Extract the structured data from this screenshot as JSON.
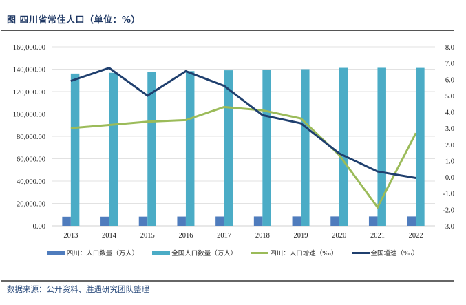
{
  "header": {
    "title": "图 四川省常住人口（单位：%）"
  },
  "footer": {
    "source": "数据来源：公开资料、胜遇研究团队整理"
  },
  "colors": {
    "sichuan_pop": "#4f7cbd",
    "national_pop": "#4bacc6",
    "sichuan_growth": "#9bbb59",
    "national_growth": "#1f3f6e",
    "grid": "#e2e2e2"
  },
  "chart_data": {
    "type": "bar",
    "title": "四川省常住人口（单位：%）",
    "categories": [
      "2013",
      "2014",
      "2015",
      "2016",
      "2017",
      "2018",
      "2019",
      "2020",
      "2021",
      "2022"
    ],
    "series": [
      {
        "name": "四川：人口数量（万人）",
        "type": "bar",
        "axis": "left",
        "values": [
          8107,
          8140,
          8204,
          8262,
          8302,
          8341,
          8375,
          8371,
          8372,
          8374
        ]
      },
      {
        "name": "全国人口数量（万人）",
        "type": "bar",
        "axis": "left",
        "values": [
          136072,
          136782,
          137462,
          138271,
          139008,
          139538,
          140005,
          141212,
          141260,
          141175
        ]
      },
      {
        "name": "四川：人口增速（‰）",
        "type": "line",
        "axis": "right",
        "values": [
          3.0,
          3.2,
          3.4,
          3.5,
          4.3,
          4.1,
          3.6,
          1.35,
          -1.86,
          2.7
        ]
      },
      {
        "name": "全国增速（‰）",
        "type": "line",
        "axis": "right",
        "values": [
          5.9,
          6.7,
          5.0,
          6.5,
          5.6,
          3.8,
          3.3,
          1.45,
          0.34,
          -0.06
        ]
      }
    ],
    "left_axis": {
      "ylim": [
        0,
        160000
      ],
      "ticks": [
        "0.00",
        "20,000.00",
        "40,000.00",
        "60,000.00",
        "80,000.00",
        "100,000.00",
        "120,000.00",
        "140,000.00",
        "160,000.00"
      ]
    },
    "right_axis": {
      "ylim": [
        -3,
        8
      ],
      "ticks": [
        "-3.0",
        "-2.0",
        "-1.0",
        "0.0",
        "1.0",
        "2.0",
        "3.0",
        "4.0",
        "5.0",
        "6.0",
        "7.0",
        "8.0"
      ]
    },
    "grid": true,
    "legend_position": "bottom",
    "xlabel": "",
    "ylabel": ""
  }
}
